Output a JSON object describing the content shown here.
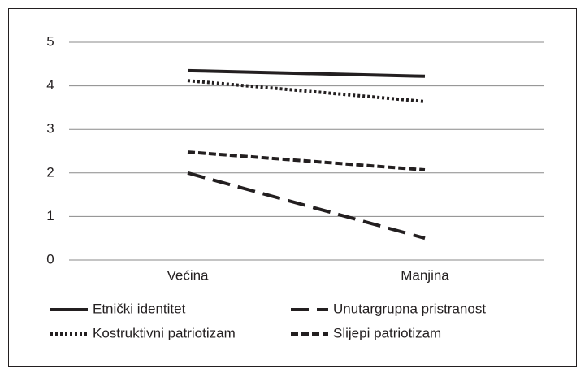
{
  "chart_data": {
    "type": "line",
    "categories": [
      "Većina",
      "Manjina"
    ],
    "series": [
      {
        "name": "Etnički identitet",
        "color": "#231f20",
        "style": "solid",
        "values": [
          4.35,
          4.22
        ]
      },
      {
        "name": "Unutargrupna pristranost",
        "color": "#231f20",
        "style": "long-dash",
        "values": [
          2.0,
          0.5
        ]
      },
      {
        "name": "Kostruktivni patriotizam",
        "color": "#231f20",
        "style": "dotted",
        "values": [
          4.12,
          3.64
        ]
      },
      {
        "name": "Slijepi patriotizam",
        "color": "#231f20",
        "style": "dashed",
        "values": [
          2.48,
          2.07
        ]
      }
    ],
    "ylim": [
      0,
      5
    ],
    "yticks": [
      0,
      1,
      2,
      3,
      4,
      5
    ],
    "grid": true
  }
}
